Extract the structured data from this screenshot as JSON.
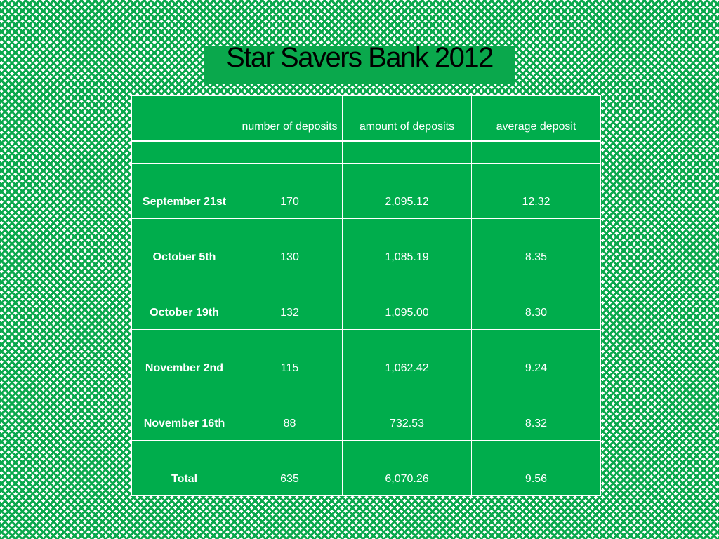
{
  "title": "Star Savers Bank 2012",
  "table": {
    "headers": [
      "",
      "number of deposits",
      "amount of deposits",
      "average deposit"
    ],
    "rows": [
      {
        "label": "September 21st",
        "count": "170",
        "amount": "2,095.12",
        "average": "12.32"
      },
      {
        "label": "October 5th",
        "count": "130",
        "amount": "1,085.19",
        "average": "8.35"
      },
      {
        "label": "October 19th",
        "count": "132",
        "amount": "1,095.00",
        "average": "8.30"
      },
      {
        "label": "November 2nd",
        "count": "115",
        "amount": "1,062.42",
        "average": "9.24"
      },
      {
        "label": "November 16th",
        "count": "88",
        "amount": "732.53",
        "average": "8.32"
      },
      {
        "label": "Total",
        "count": "635",
        "amount": "6,070.26",
        "average": "9.56"
      }
    ]
  },
  "colors": {
    "background_pattern": "#0aa84c",
    "table_fill": "#00ad4c",
    "table_text": "#ffffff",
    "title_text": "#000000"
  }
}
